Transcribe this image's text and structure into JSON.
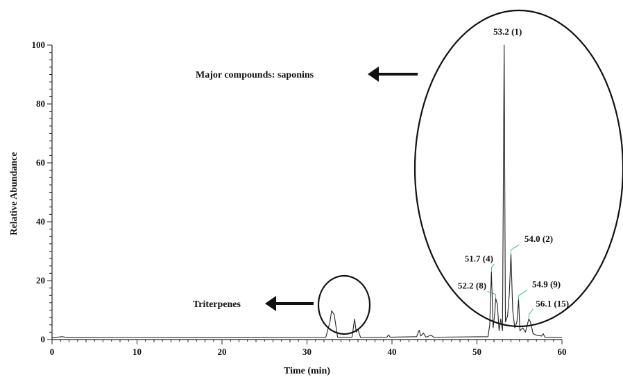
{
  "chart_data": {
    "type": "line",
    "title": "",
    "xlabel": "Time (min)",
    "ylabel": "Relative Abundance",
    "xlim": [
      0,
      60
    ],
    "ylim": [
      0,
      100
    ],
    "x_ticks": [
      0,
      10,
      20,
      30,
      40,
      50,
      60
    ],
    "y_ticks": [
      0,
      20,
      40,
      60,
      80,
      100
    ],
    "grid": false,
    "series": [
      {
        "values": [
          [
            0,
            0.6
          ],
          [
            1.2,
            1.0
          ],
          [
            2,
            0.6
          ],
          [
            10,
            0.7
          ],
          [
            20,
            0.6
          ],
          [
            30,
            0.7
          ],
          [
            32.2,
            0.7
          ],
          [
            32.7,
            6.0
          ],
          [
            32.9,
            9.8
          ],
          [
            33.2,
            8.5
          ],
          [
            33.6,
            0.8
          ],
          [
            35.3,
            0.8
          ],
          [
            35.6,
            7.0
          ],
          [
            35.8,
            2.5
          ],
          [
            36.0,
            3.5
          ],
          [
            36.3,
            0.7
          ],
          [
            39.4,
            0.8
          ],
          [
            39.6,
            1.6
          ],
          [
            39.8,
            0.8
          ],
          [
            42.9,
            1.0
          ],
          [
            43.2,
            3.2
          ],
          [
            43.4,
            1.2
          ],
          [
            43.7,
            2.2
          ],
          [
            44.0,
            0.8
          ],
          [
            44.6,
            1.5
          ],
          [
            44.9,
            0.8
          ],
          [
            51.3,
            1.0
          ],
          [
            51.5,
            5.0
          ],
          [
            51.7,
            23.0
          ],
          [
            51.9,
            4.0
          ],
          [
            52.1,
            9.0
          ],
          [
            52.2,
            14.0
          ],
          [
            52.4,
            12.0
          ],
          [
            52.6,
            3.0
          ],
          [
            52.8,
            7.0
          ],
          [
            53.0,
            3.0
          ],
          [
            53.2,
            100
          ],
          [
            53.35,
            6.0
          ],
          [
            53.6,
            8.0
          ],
          [
            53.8,
            15.0
          ],
          [
            54.0,
            29.0
          ],
          [
            54.2,
            10.0
          ],
          [
            54.45,
            4.0
          ],
          [
            54.7,
            6.0
          ],
          [
            54.9,
            13.5
          ],
          [
            55.05,
            3.0
          ],
          [
            55.4,
            4.0
          ],
          [
            55.7,
            2.5
          ],
          [
            56.1,
            7.0
          ],
          [
            56.3,
            6.0
          ],
          [
            56.6,
            2.0
          ],
          [
            57.0,
            1.5
          ],
          [
            57.6,
            1.2
          ],
          [
            57.8,
            2.0
          ],
          [
            58.0,
            0.8
          ],
          [
            60,
            0.7
          ]
        ]
      }
    ],
    "peaks": [
      {
        "label": "53.2 (1)",
        "x": 53.2,
        "y": 100
      },
      {
        "label": "54.0 (2)",
        "x": 54.0,
        "y": 29
      },
      {
        "label": "51.7 (4)",
        "x": 51.7,
        "y": 23
      },
      {
        "label": "52.2 (8)",
        "x": 52.2,
        "y": 14
      },
      {
        "label": "54.9 (9)",
        "x": 54.9,
        "y": 13.5
      },
      {
        "label": "56.1 (15)",
        "x": 56.1,
        "y": 7
      }
    ],
    "annotations": [
      {
        "text": "Major compounds: saponins",
        "arrow": "left"
      },
      {
        "text": "Triterpenes",
        "arrow": "left"
      }
    ],
    "accent_color": "#1fa38a",
    "line_color": "#222222"
  }
}
